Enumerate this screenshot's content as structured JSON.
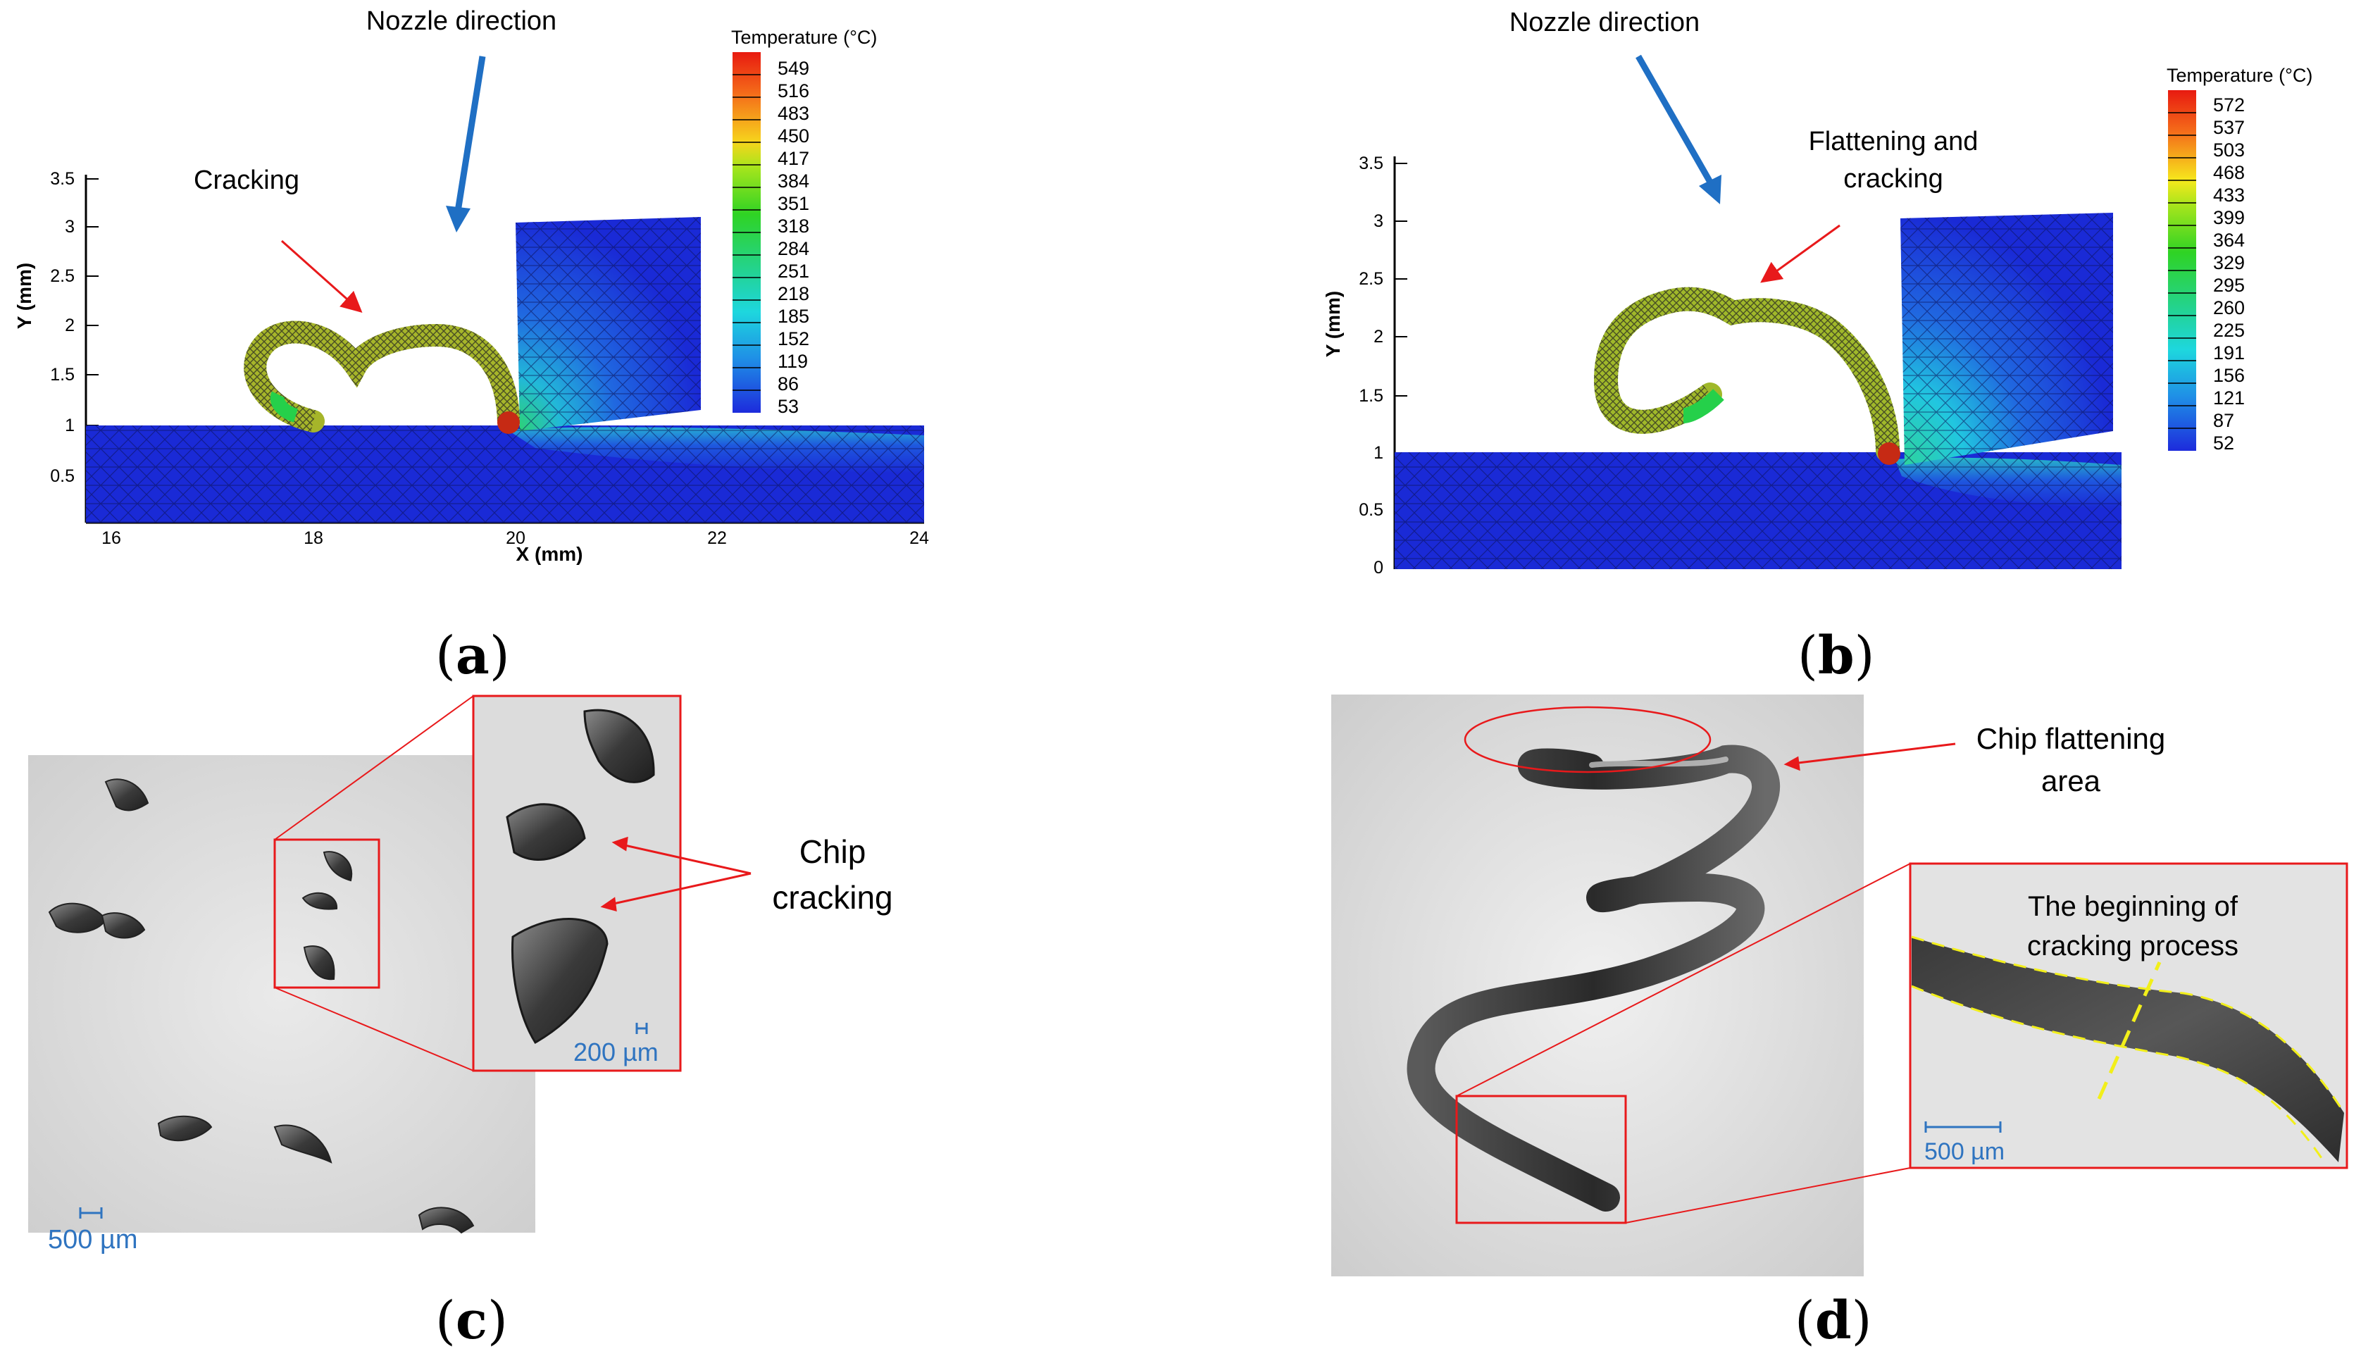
{
  "panel_a": {
    "nozzle_label": "Nozzle direction",
    "callout": "Cracking",
    "colorbar_title": "Temperature (°C)",
    "colorbar_values": [
      "549",
      "516",
      "483",
      "450",
      "417",
      "384",
      "351",
      "318",
      "284",
      "251",
      "218",
      "185",
      "152",
      "119",
      "86",
      "53"
    ],
    "y_axis_label": "Y (mm)",
    "x_axis_label": "X (mm)",
    "y_ticks": [
      "3.5",
      "3",
      "2.5",
      "2",
      "1.5",
      "1",
      "0.5"
    ],
    "x_ticks": [
      "16",
      "18",
      "20",
      "22",
      "24"
    ],
    "label_open": "(",
    "label_letter": "a",
    "label_close": ")"
  },
  "panel_b": {
    "nozzle_label": "Nozzle direction",
    "callout_line1": "Flattening and",
    "callout_line2": "cracking",
    "colorbar_title": "Temperature (°C)",
    "colorbar_values": [
      "572",
      "537",
      "503",
      "468",
      "433",
      "399",
      "364",
      "329",
      "295",
      "260",
      "225",
      "191",
      "156",
      "121",
      "87",
      "52"
    ],
    "y_axis_label": "Y (mm)",
    "y_ticks": [
      "3.5",
      "3",
      "2.5",
      "2",
      "1.5",
      "1",
      "0.5",
      "0"
    ],
    "label_open": "(",
    "label_letter": "b",
    "label_close": ")"
  },
  "panel_c": {
    "callout_line1": "Chip",
    "callout_line2": "cracking",
    "scale_main": "500 µm",
    "scale_inset": "200 µm",
    "label_open": "(",
    "label_letter": "c",
    "label_close": ")"
  },
  "panel_d": {
    "callout_line1": "Chip flattening",
    "callout_line2": "area",
    "inset_line1": "The beginning of",
    "inset_line2": "cracking process",
    "scale_inset": "500 µm",
    "label_open": "(",
    "label_letter": "d",
    "label_close": ")"
  },
  "colors": {
    "arrow_blue": "#1f6fc4",
    "callout_red": "#e8191b",
    "scale_blue": "#2f74c0",
    "dashed_yellow": "#f2ef1a"
  }
}
